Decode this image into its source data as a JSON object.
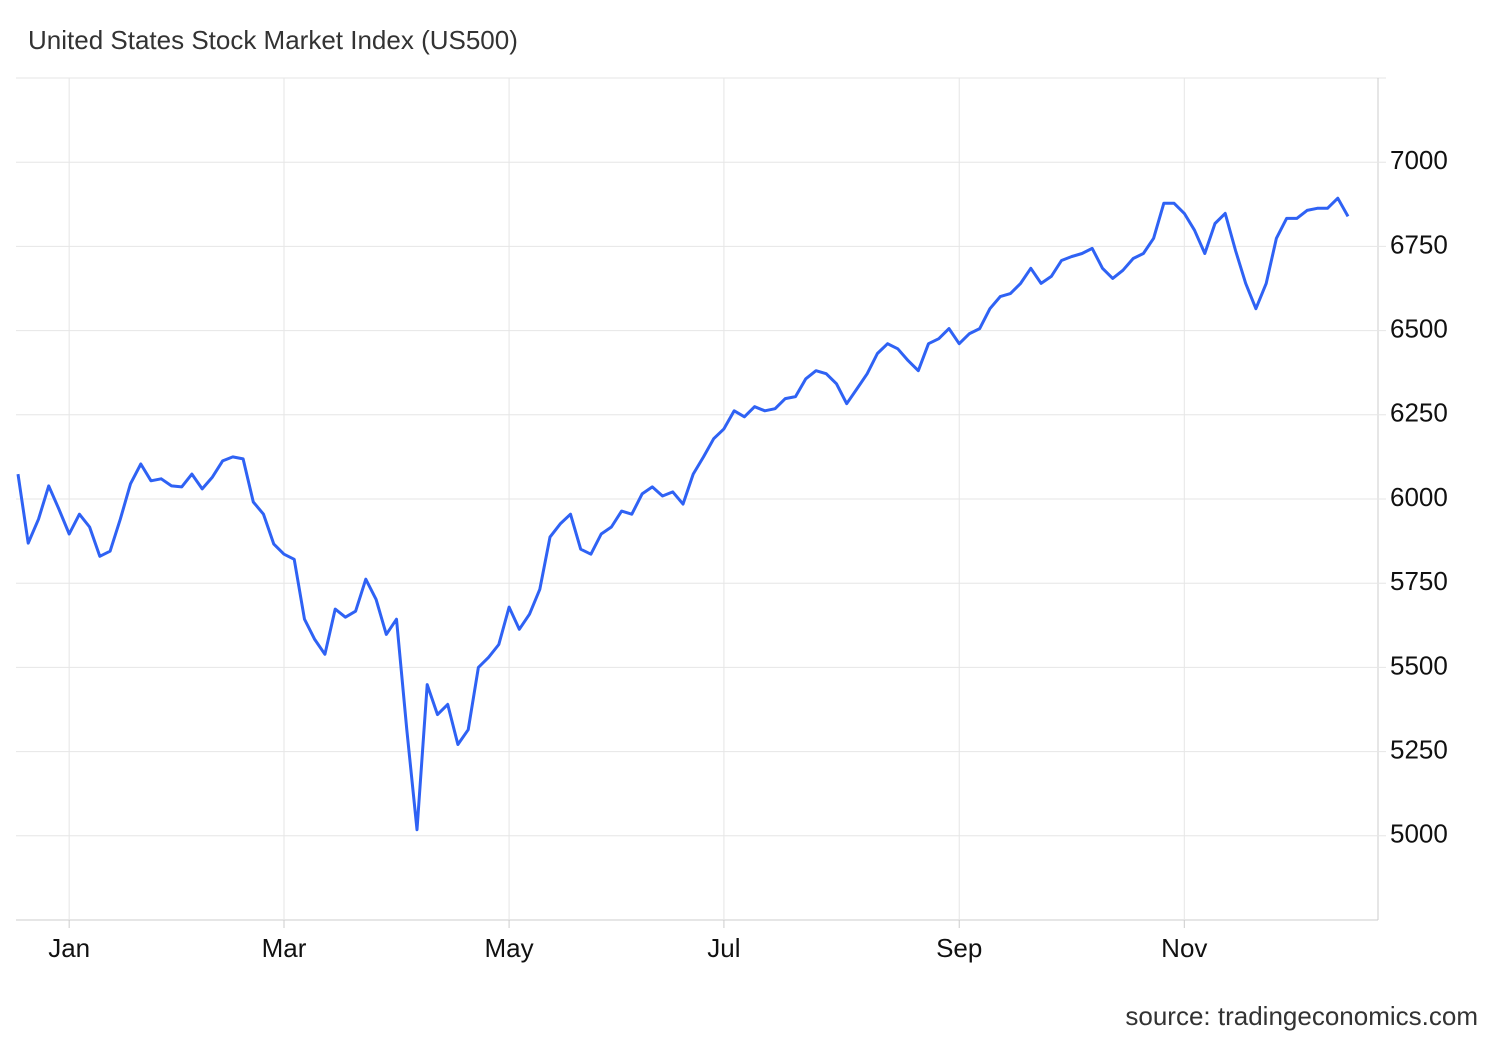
{
  "chart_data": {
    "type": "line",
    "title": "United States Stock Market Index (US500)",
    "source": "source: tradingeconomics.com",
    "categories": [
      null,
      null,
      null,
      null,
      null,
      "Jan",
      null,
      null,
      null,
      null,
      null,
      null,
      null,
      null,
      null,
      null,
      null,
      null,
      null,
      null,
      null,
      null,
      null,
      null,
      null,
      null,
      "Mar",
      null,
      null,
      null,
      null,
      null,
      null,
      null,
      null,
      null,
      null,
      null,
      null,
      null,
      null,
      null,
      null,
      null,
      null,
      null,
      null,
      null,
      "May",
      null,
      null,
      null,
      null,
      null,
      null,
      null,
      null,
      null,
      null,
      null,
      null,
      null,
      null,
      null,
      null,
      null,
      null,
      null,
      null,
      "Jul",
      null,
      null,
      null,
      null,
      null,
      null,
      null,
      null,
      null,
      null,
      null,
      null,
      null,
      null,
      null,
      null,
      null,
      null,
      null,
      null,
      null,
      null,
      "Sep",
      null,
      null,
      null,
      null,
      null,
      null,
      null,
      null,
      null,
      null,
      null,
      null,
      null,
      null,
      null,
      null,
      null,
      null,
      null,
      null,
      null,
      "Nov",
      null,
      null,
      null,
      null,
      null,
      null,
      null,
      null,
      null,
      null,
      null,
      null,
      null,
      null,
      null,
      null
    ],
    "series": [
      {
        "name": "US500",
        "color": "#2f62f4",
        "values": [
          6074,
          5869,
          5940,
          6039,
          5970,
          5896,
          5955,
          5917,
          5830,
          5845,
          5940,
          6045,
          6104,
          6054,
          6060,
          6039,
          6036,
          6074,
          6030,
          6065,
          6113,
          6125,
          6119,
          5991,
          5955,
          5866,
          5836,
          5821,
          5643,
          5583,
          5539,
          5673,
          5649,
          5667,
          5762,
          5702,
          5598,
          5643,
          5315,
          5018,
          5449,
          5360,
          5390,
          5271,
          5315,
          5500,
          5530,
          5568,
          5679,
          5613,
          5658,
          5732,
          5887,
          5926,
          5955,
          5851,
          5836,
          5896,
          5917,
          5964,
          5955,
          6015,
          6036,
          6009,
          6021,
          5985,
          6074,
          6125,
          6179,
          6208,
          6262,
          6244,
          6274,
          6262,
          6268,
          6298,
          6304,
          6357,
          6381,
          6372,
          6342,
          6283,
          6327,
          6372,
          6432,
          6461,
          6446,
          6411,
          6381,
          6461,
          6476,
          6506,
          6461,
          6491,
          6506,
          6565,
          6601,
          6610,
          6640,
          6685,
          6640,
          6661,
          6708,
          6720,
          6729,
          6744,
          6685,
          6655,
          6679,
          6714,
          6729,
          6774,
          6878,
          6878,
          6848,
          6798,
          6729,
          6818,
          6848,
          6738,
          6640,
          6565,
          6640,
          6774,
          6833,
          6833,
          6857,
          6863,
          6863,
          6893,
          6839
        ]
      }
    ],
    "ylim": [
      4750,
      7250
    ],
    "yticks": [
      5000,
      5250,
      5500,
      5750,
      6000,
      6250,
      6500,
      6750,
      7000
    ],
    "grid": true
  }
}
